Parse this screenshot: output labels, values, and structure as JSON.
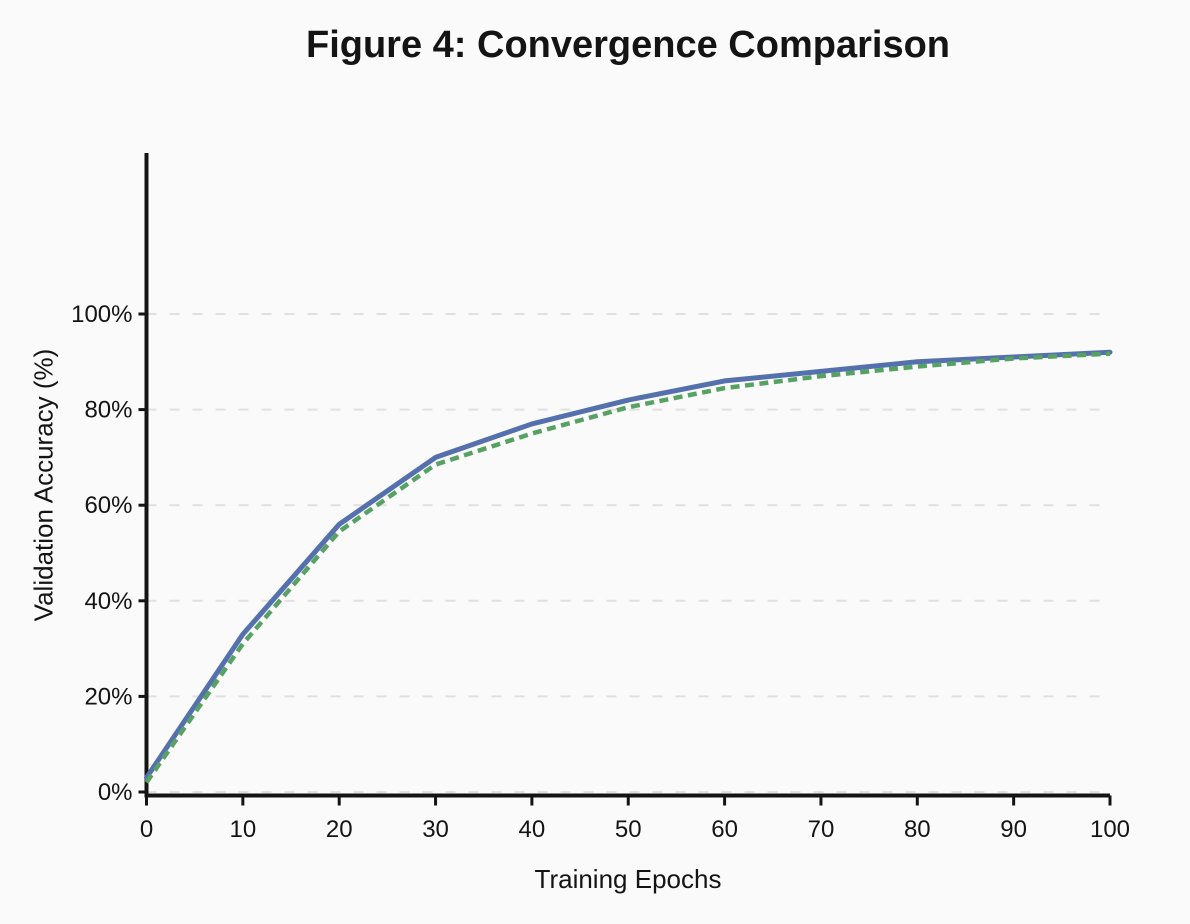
{
  "page": {
    "background_color": "#fafafa"
  },
  "chart_data": {
    "type": "line",
    "title": "Figure 4: Convergence Comparison",
    "xlabel": "Training Epochs",
    "ylabel": "Validation Accuracy (%)",
    "x": [
      0,
      10,
      20,
      30,
      40,
      50,
      60,
      70,
      80,
      90,
      100
    ],
    "x_tick_labels": [
      "0",
      "10",
      "20",
      "30",
      "40",
      "50",
      "60",
      "70",
      "80",
      "90",
      "100"
    ],
    "y_ticks": [
      0,
      20,
      40,
      60,
      80,
      100
    ],
    "y_tick_labels": [
      "0%",
      "20%",
      "40%",
      "60%",
      "80%",
      "100%"
    ],
    "xlim": [
      0,
      100
    ],
    "ylim": [
      0,
      100
    ],
    "grid": "horizontal dashed gridlines at each 20% level",
    "legend": "none",
    "series": [
      {
        "name": "solid-blue-line",
        "style": "solid",
        "color": "#5571ad",
        "values": [
          3,
          33,
          56,
          70,
          77,
          82,
          86,
          88,
          90,
          91,
          92
        ]
      },
      {
        "name": "dashed-green-line",
        "style": "dashed",
        "color": "#57a263",
        "values": [
          2,
          31,
          54.5,
          68.5,
          75,
          80.5,
          84.5,
          87,
          89,
          90.7,
          91.7
        ]
      }
    ]
  },
  "colors": {
    "axis": "#141414",
    "gridline": "#e0e0e0",
    "background": "#fafafa",
    "series_blue": "#5571ad",
    "series_green": "#57a263"
  }
}
